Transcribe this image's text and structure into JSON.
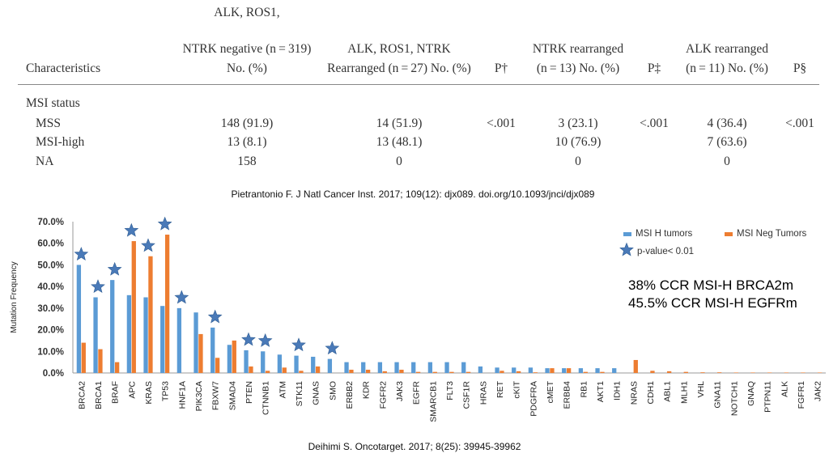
{
  "table": {
    "headers": {
      "characteristics": "Characteristics",
      "col1": [
        "ALK, ROS1,",
        "NTRK negative (n = 319)",
        "No. (%)"
      ],
      "col2": [
        "ALK, ROS1, NTRK",
        "Rearranged (n = 27) No. (%)"
      ],
      "p1": "P†",
      "col3": [
        "NTRK rearranged",
        "(n = 13) No. (%)"
      ],
      "p2": "P‡",
      "col4": [
        "ALK rearranged",
        "(n = 11) No. (%)"
      ],
      "p3": "P§"
    },
    "section": "MSI status",
    "rows": [
      {
        "label": "MSS",
        "c1": "148 (91.9)",
        "c2": "14 (51.9)",
        "p1": "<.001",
        "c3": "3 (23.1)",
        "p2": "<.001",
        "c4": "4 (36.4)",
        "p3": "<.001"
      },
      {
        "label": "MSI-high",
        "c1": "13 (8.1)",
        "c2": "13 (48.1)",
        "p1": "",
        "c3": "10 (76.9)",
        "p2": "",
        "c4": "7 (63.6)",
        "p3": ""
      },
      {
        "label": "NA",
        "c1": "158",
        "c2": "0",
        "p1": "",
        "c3": "0",
        "p2": "",
        "c4": "0",
        "p3": ""
      }
    ]
  },
  "citation_top": "Pietrantonio F. J Natl Cancer Inst. 2017; 109(12): djx089. doi.org/10.1093/jnci/djx089",
  "citation_bottom": "Deihimi S. Oncotarget. 2017; 8(25): 39945-39962",
  "callout": [
    "38% CCR MSI-H BRCA2m",
    "45.5% CCR MSI-H EGFRm"
  ],
  "chart_data": {
    "type": "bar",
    "ylabel": "Mutation Frequency",
    "ylim": [
      0,
      0.7
    ],
    "yticks": [
      "0.0%",
      "10.0%",
      "20.0%",
      "30.0%",
      "40.0%",
      "50.0%",
      "60.0%",
      "70.0%"
    ],
    "grid": false,
    "legend_position": "top-right",
    "categories": [
      "BRCA2",
      "BRCA1",
      "BRAF",
      "APC",
      "KRAS",
      "TP53",
      "HNF1A",
      "PIK3CA",
      "FBXW7",
      "SMAD4",
      "PTEN",
      "CTNNB1",
      "ATM",
      "STK11",
      "GNAS",
      "SMO",
      "ERBB2",
      "KDR",
      "FGFR2",
      "JAK3",
      "EGFR",
      "SMARCB1",
      "FLT3",
      "CSF1R",
      "HRAS",
      "RET",
      "cKIT",
      "PDGFRA",
      "cMET",
      "ERBB4",
      "RB1",
      "AKT1",
      "IDH1",
      "NRAS",
      "CDH1",
      "ABL1",
      "MLH1",
      "VHL",
      "GNA11",
      "NOTCH1",
      "GNAQ",
      "PTPN11",
      "ALK",
      "FGFR1",
      "JAK2"
    ],
    "series": [
      {
        "name": "MSI H tumors",
        "color": "#5b9bd5",
        "values": [
          0.5,
          0.35,
          0.43,
          0.36,
          0.35,
          0.31,
          0.3,
          0.28,
          0.21,
          0.13,
          0.105,
          0.1,
          0.085,
          0.08,
          0.075,
          0.065,
          0.05,
          0.05,
          0.05,
          0.05,
          0.05,
          0.05,
          0.05,
          0.05,
          0.03,
          0.025,
          0.025,
          0.025,
          0.022,
          0.022,
          0.022,
          0.022,
          0.022,
          0.0,
          0.0,
          0.0,
          0.0,
          0.0,
          0.0,
          0.0,
          0.0,
          0.0,
          0.0,
          0.0,
          0.0
        ]
      },
      {
        "name": "MSI Neg Tumors",
        "color": "#ed7d31",
        "values": [
          0.14,
          0.11,
          0.05,
          0.61,
          0.54,
          0.64,
          0.0,
          0.18,
          0.07,
          0.15,
          0.03,
          0.01,
          0.025,
          0.01,
          0.03,
          0.0,
          0.015,
          0.015,
          0.008,
          0.015,
          0.005,
          0.005,
          0.005,
          0.005,
          0.0,
          0.01,
          0.008,
          0.003,
          0.022,
          0.022,
          0.005,
          0.005,
          0.0,
          0.06,
          0.01,
          0.008,
          0.005,
          0.003,
          0.003,
          0.002,
          0.002,
          0.002,
          0.002,
          0.002,
          0.002
        ]
      }
    ],
    "significance_legend": "p-value< 0.01",
    "significant": [
      "BRCA2",
      "BRCA1",
      "BRAF",
      "APC",
      "KRAS",
      "TP53",
      "HNF1A",
      "FBXW7",
      "PTEN",
      "CTNNB1",
      "STK11",
      "SMO"
    ],
    "star_color": "#4a7ab8"
  }
}
